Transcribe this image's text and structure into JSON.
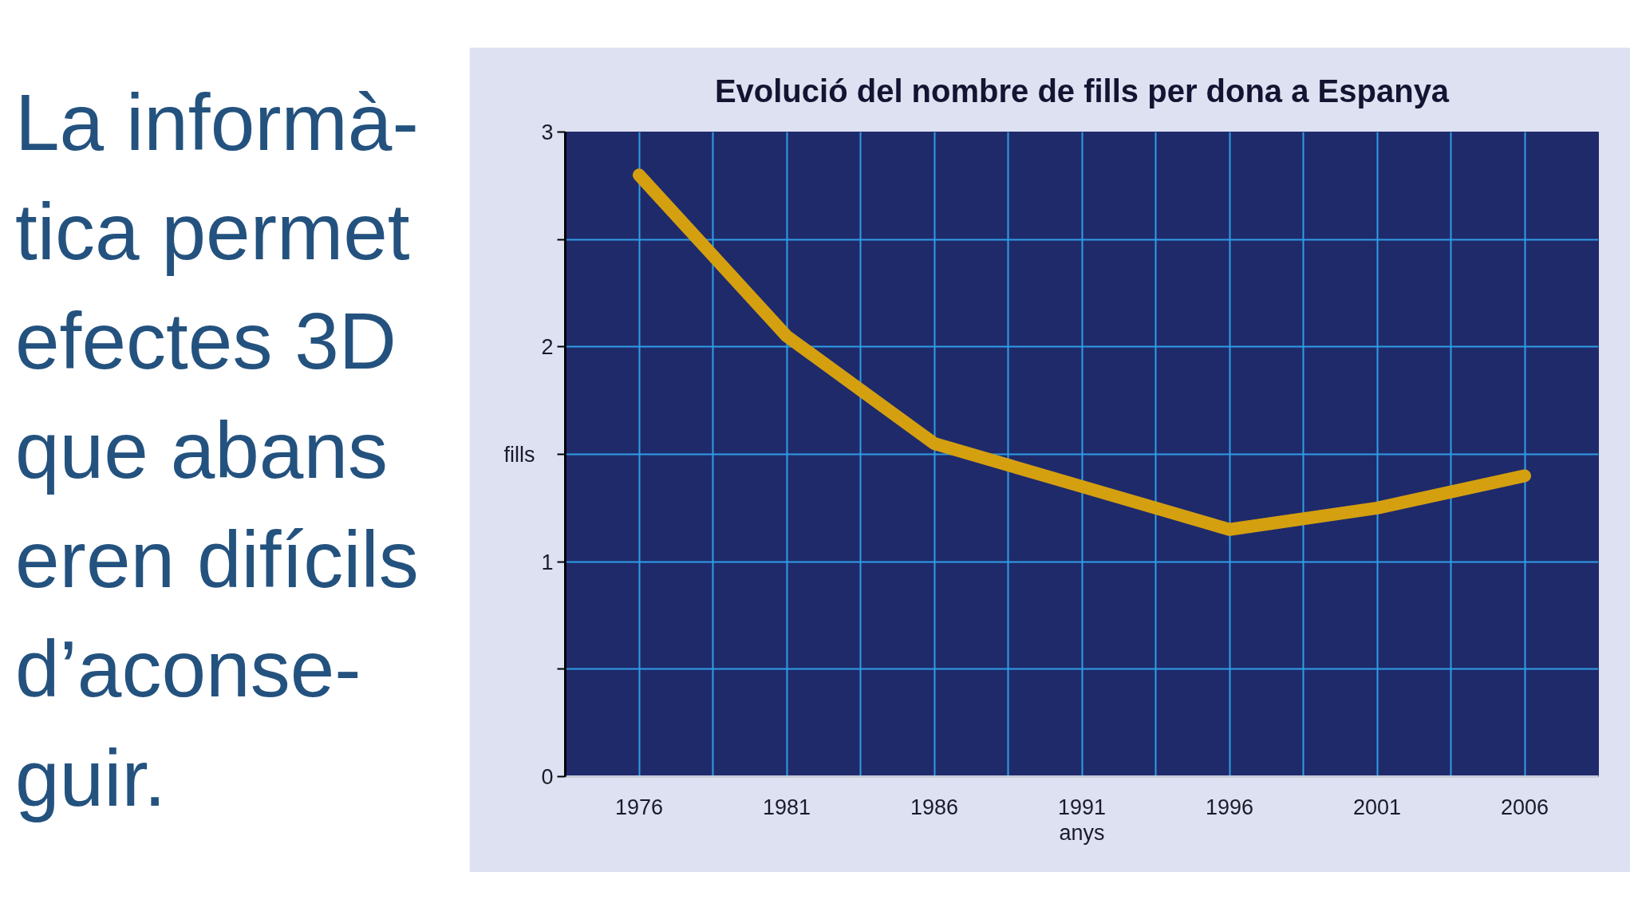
{
  "chart_data": {
    "type": "line",
    "title": "Evolució del nombre de fills per dona a Espanya",
    "xlabel": "anys",
    "ylabel": "fills",
    "categories": [
      "1976",
      "1981",
      "1986",
      "1991",
      "1996",
      "2001",
      "2006"
    ],
    "values": [
      2.8,
      2.05,
      1.55,
      1.35,
      1.15,
      1.25,
      1.4
    ],
    "color": "#d4a010",
    "ylim": [
      0,
      3
    ],
    "yticks": [
      0,
      {
        "value": 0.5,
        "label": null
      },
      1,
      {
        "value": 1.5,
        "label": null
      },
      2,
      {
        "value": 2.5,
        "label": null
      },
      3
    ],
    "grid": true,
    "annotations": [
      "La informà-\ntica permet\nefectes 3D\nque abans\neren difícils\nd’aconse-\nguir."
    ]
  }
}
